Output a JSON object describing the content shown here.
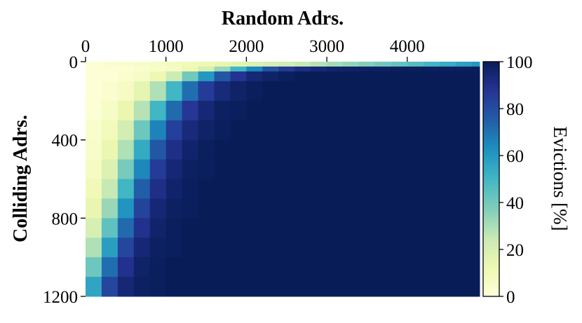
{
  "chart_data": {
    "type": "heatmap",
    "title": "",
    "xlabel": "Random Adrs.",
    "ylabel": "Colliding Adrs.",
    "colorbar_label": "Evictions [%]",
    "xlabel_position": "top",
    "xlim": [
      0,
      4900
    ],
    "ylim": [
      1200,
      0
    ],
    "xticks": [
      0,
      1000,
      2000,
      3000,
      4000
    ],
    "yticks": [
      0,
      400,
      800,
      1200
    ],
    "colorbar_ticks": [
      0,
      20,
      40,
      60,
      80,
      100
    ],
    "colorbar_range": [
      0,
      100
    ],
    "colormap": [
      "#ffffd9",
      "#edf8b1",
      "#c7e9b4",
      "#7fcdbb",
      "#41b6c4",
      "#1d91c0",
      "#225ea8",
      "#253494",
      "#081d58"
    ],
    "x_cell_starts": [
      0,
      200,
      400,
      600,
      800,
      1000,
      1200,
      1400,
      1600,
      1800,
      2000,
      2200,
      2400,
      2600,
      2800,
      3000,
      3200,
      3400,
      3600,
      3800,
      4000,
      4200,
      4400,
      4600,
      4800
    ],
    "x_cell_width": 200,
    "y_cell_starts": [
      0,
      25,
      50,
      100,
      200,
      300,
      400,
      500,
      600,
      700,
      800,
      900,
      1000,
      1100
    ],
    "values": [
      [
        2,
        3,
        4,
        5,
        6,
        8,
        10,
        12,
        14,
        16,
        18,
        20,
        22,
        25,
        28,
        31,
        34,
        37,
        40,
        43,
        46,
        50,
        53,
        57,
        60
      ],
      [
        1,
        2,
        2,
        3,
        5,
        7,
        12,
        20,
        33,
        50,
        65,
        78,
        86,
        91,
        94,
        96,
        97,
        98,
        98,
        99,
        99,
        99,
        99,
        99,
        99
      ],
      [
        1,
        1,
        3,
        6,
        12,
        23,
        40,
        60,
        77,
        88,
        94,
        97,
        99,
        100,
        100,
        100,
        100,
        100,
        100,
        100,
        100,
        100,
        100,
        100,
        100
      ],
      [
        1,
        3,
        7,
        15,
        29,
        50,
        71,
        85,
        93,
        97,
        99,
        100,
        100,
        100,
        100,
        100,
        100,
        100,
        100,
        100,
        100,
        100,
        100,
        100,
        100
      ],
      [
        2,
        6,
        13,
        28,
        50,
        72,
        87,
        94,
        98,
        99,
        100,
        100,
        100,
        100,
        100,
        100,
        100,
        100,
        100,
        100,
        100,
        100,
        100,
        100,
        100
      ],
      [
        4,
        9,
        21,
        41,
        66,
        84,
        93,
        97,
        99,
        100,
        100,
        100,
        100,
        100,
        100,
        100,
        100,
        100,
        100,
        100,
        100,
        100,
        100,
        100,
        100
      ],
      [
        5,
        13,
        29,
        54,
        77,
        90,
        96,
        99,
        100,
        100,
        100,
        100,
        100,
        100,
        100,
        100,
        100,
        100,
        100,
        100,
        100,
        100,
        100,
        100,
        100
      ],
      [
        7,
        18,
        39,
        65,
        85,
        94,
        98,
        99,
        100,
        100,
        100,
        100,
        100,
        100,
        100,
        100,
        100,
        100,
        100,
        100,
        100,
        100,
        100,
        100,
        100
      ],
      [
        10,
        25,
        50,
        75,
        90,
        96,
        99,
        100,
        100,
        100,
        100,
        100,
        100,
        100,
        100,
        100,
        100,
        100,
        100,
        100,
        100,
        100,
        100,
        100,
        100
      ],
      [
        14,
        33,
        61,
        83,
        94,
        98,
        99,
        100,
        100,
        100,
        100,
        100,
        100,
        100,
        100,
        100,
        100,
        100,
        100,
        100,
        100,
        100,
        100,
        100,
        100
      ],
      [
        20,
        44,
        72,
        89,
        96,
        99,
        100,
        100,
        100,
        100,
        100,
        100,
        100,
        100,
        100,
        100,
        100,
        100,
        100,
        100,
        100,
        100,
        100,
        100,
        100
      ],
      [
        29,
        58,
        82,
        94,
        98,
        99,
        100,
        100,
        100,
        100,
        100,
        100,
        100,
        100,
        100,
        100,
        100,
        100,
        100,
        100,
        100,
        100,
        100,
        100,
        100
      ],
      [
        41,
        71,
        89,
        97,
        99,
        100,
        100,
        100,
        100,
        100,
        100,
        100,
        100,
        100,
        100,
        100,
        100,
        100,
        100,
        100,
        100,
        100,
        100,
        100,
        100
      ],
      [
        56,
        82,
        94,
        98,
        99,
        100,
        100,
        100,
        100,
        100,
        100,
        100,
        100,
        100,
        100,
        100,
        100,
        100,
        100,
        100,
        100,
        100,
        100,
        100,
        100
      ]
    ]
  }
}
